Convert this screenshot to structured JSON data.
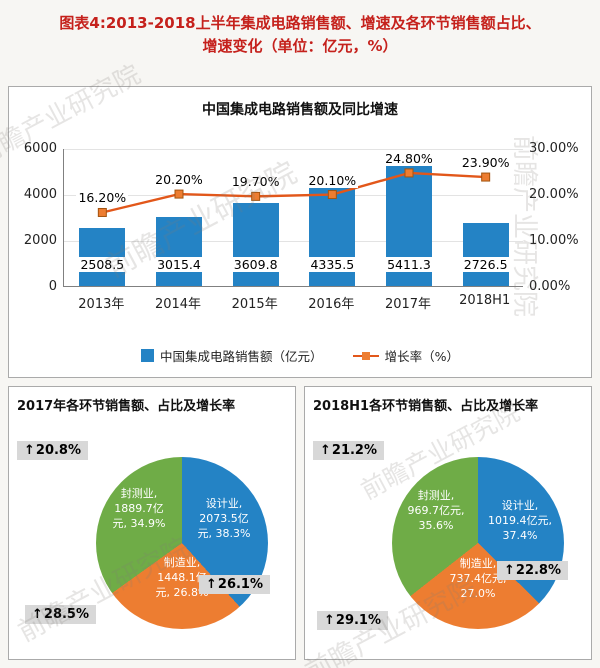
{
  "page": {
    "title_line1": "图表4:2013-2018上半年集成电路销售额、增速及各环节销售额占比、",
    "title_line2": "增速变化（单位：亿元，%）",
    "watermark": "前瞻产业研究院"
  },
  "icons": {
    "up_arrow": "↑"
  },
  "colors": {
    "title_red": "#c5211c",
    "bar_blue": "#2483c5",
    "line_orange": "#e2571a",
    "marker_orange": "#ed7d31",
    "pie_blue": "#2483c5",
    "pie_orange": "#ed7d31",
    "pie_green": "#6fac47",
    "callout_bg": "#d8d8d8"
  },
  "chart_data": [
    {
      "type": "bar",
      "title": "中国集成电路销售额及同比增速",
      "categories": [
        "2013年",
        "2014年",
        "2015年",
        "2016年",
        "2017年",
        "2018H1"
      ],
      "series": [
        {
          "name": "中国集成电路销售额（亿元）",
          "type": "bar",
          "values": [
            2508.5,
            3015.4,
            3609.8,
            4335.5,
            5411.3,
            2726.5
          ]
        },
        {
          "name": "增长率（%）",
          "type": "line",
          "values": [
            16.2,
            20.2,
            19.7,
            20.1,
            24.8,
            23.9
          ],
          "labels": [
            "16.20%",
            "20.20%",
            "19.70%",
            "20.10%",
            "24.80%",
            "23.90%"
          ]
        }
      ],
      "left_axis": {
        "ticks": [
          6000,
          4000,
          2000,
          0
        ],
        "max": 6000
      },
      "right_axis": {
        "ticks": [
          "30.00%",
          "20.00%",
          "10.00%",
          "0.00%"
        ],
        "max": 30
      },
      "legend_position": "bottom",
      "grid": true
    },
    {
      "type": "pie",
      "title": "2017年各环节销售额、占比及增长率",
      "slices": [
        {
          "name": "设计业",
          "label_lines": [
            "设计业,",
            "2073.5亿",
            "元, 38.3%"
          ],
          "value": 38.3,
          "growth": "26.1%",
          "color_key": "pie_blue"
        },
        {
          "name": "制造业",
          "label_lines": [
            "制造业,",
            "1448.1亿",
            "元, 26.8%"
          ],
          "value": 26.8,
          "growth": "28.5%",
          "color_key": "pie_orange"
        },
        {
          "name": "封测业",
          "label_lines": [
            "封测业,",
            "1889.7亿",
            "元, 34.9%"
          ],
          "value": 34.9,
          "growth": "20.8%",
          "color_key": "pie_green"
        }
      ]
    },
    {
      "type": "pie",
      "title": "2018H1各环节销售额、占比及增长率",
      "slices": [
        {
          "name": "设计业",
          "label_lines": [
            "设计业,",
            "1019.4亿元,",
            "37.4%"
          ],
          "value": 37.4,
          "growth": "22.8%",
          "color_key": "pie_blue"
        },
        {
          "name": "制造业",
          "label_lines": [
            "制造业,",
            "737.4亿元,",
            "27.0%"
          ],
          "value": 27.0,
          "growth": "29.1%",
          "color_key": "pie_orange"
        },
        {
          "name": "封测业",
          "label_lines": [
            "封测业,",
            "969.7亿元,",
            "35.6%"
          ],
          "value": 35.6,
          "growth": "21.2%",
          "color_key": "pie_green"
        }
      ]
    }
  ]
}
